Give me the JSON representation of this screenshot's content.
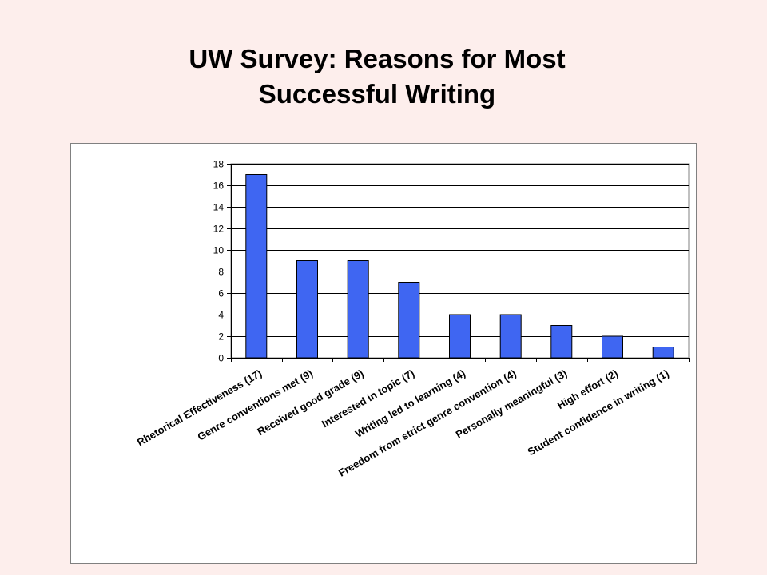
{
  "slide": {
    "title_line1": "UW Survey: Reasons for Most",
    "title_line2": "Successful Writing"
  },
  "chart_data": {
    "type": "bar",
    "title": "",
    "xlabel": "",
    "ylabel": "",
    "categories": [
      "Rhetorical Effectiveness (17)",
      "Genre conventions met (9)",
      "Received good grade (9)",
      "Interested in topic (7)",
      "Writing led to learning (4)",
      "Freedom from strict genre convention (4)",
      "Personally meaningful (3)",
      "High effort (2)",
      "Student confidence in writing (1)"
    ],
    "values": [
      17,
      9,
      9,
      7,
      4,
      4,
      3,
      2,
      1
    ],
    "ylim": [
      0,
      18
    ],
    "yticks": [
      0,
      2,
      4,
      6,
      8,
      10,
      12,
      14,
      16,
      18
    ],
    "grid": true,
    "legend": "none",
    "colors": {
      "bar_fill": "#3f66f2",
      "bar_stroke": "#000000",
      "grid": "#000000",
      "plot_border": "#808080"
    }
  }
}
